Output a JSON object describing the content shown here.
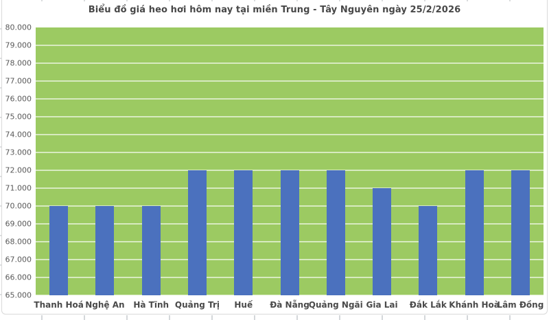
{
  "chart_data": {
    "type": "bar",
    "title": "Biểu đồ giá heo hơi hôm nay tại miền Trung - Tây Nguyên ngày 25/2/2026",
    "categories": [
      "Thanh Hoá",
      "Nghệ An",
      "Hà Tĩnh",
      "Quảng Trị",
      "Huế",
      "Đà Nẵng",
      "Quảng Ngãi",
      "Gia Lai",
      "Đắk Lắk",
      "Khánh Hoà",
      "Lâm Đồng"
    ],
    "values": [
      70000,
      70000,
      70000,
      72000,
      72000,
      72000,
      72000,
      71000,
      70000,
      72000,
      72000
    ],
    "y_ticks": [
      "80.000",
      "79.000",
      "78.000",
      "77.000",
      "76.000",
      "75.000",
      "74.000",
      "73.000",
      "72.000",
      "71.000",
      "70.000",
      "69.000",
      "68.000",
      "67.000",
      "66.000",
      "65.000"
    ],
    "ylim": [
      65000,
      80000
    ],
    "y_step": 1000,
    "grid": true,
    "legend": "none",
    "xlabel": "",
    "ylabel": "",
    "colors": {
      "bar": "#4b71be",
      "plot_background": "#9cca62",
      "gridline": "rgba(255,255,255,0.6)",
      "title_text": "#474747",
      "axis_text": "#595959",
      "chart_border": "#d9d9d9",
      "sheet_gridline": "#d9dbdd"
    }
  }
}
